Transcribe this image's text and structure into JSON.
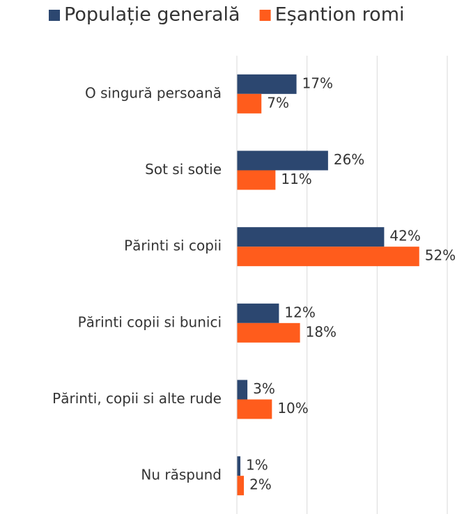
{
  "chart_data": {
    "type": "bar",
    "orientation": "horizontal",
    "categories": [
      "O singură persoană",
      "Sot si sotie",
      "Părinti si copii",
      "Părinti copii si bunici",
      "Părinti, copii si alte rude",
      "Nu răspund"
    ],
    "series": [
      {
        "name": "Populație generală",
        "color": "#2c4770",
        "values": [
          17,
          26,
          42,
          12,
          3,
          1
        ],
        "value_labels": [
          "17%",
          "26%",
          "42%",
          "12%",
          "3%",
          "1%"
        ]
      },
      {
        "name": "Eșantion romi",
        "color": "#ff5c1c",
        "values": [
          7,
          11,
          52,
          18,
          10,
          2
        ],
        "value_labels": [
          "7%",
          "11%",
          "52%",
          "18%",
          "10%",
          "2%"
        ]
      }
    ],
    "xlim": [
      0,
      60
    ],
    "xticks": [
      0,
      20,
      40,
      60
    ],
    "grid": true,
    "legend": "top"
  }
}
